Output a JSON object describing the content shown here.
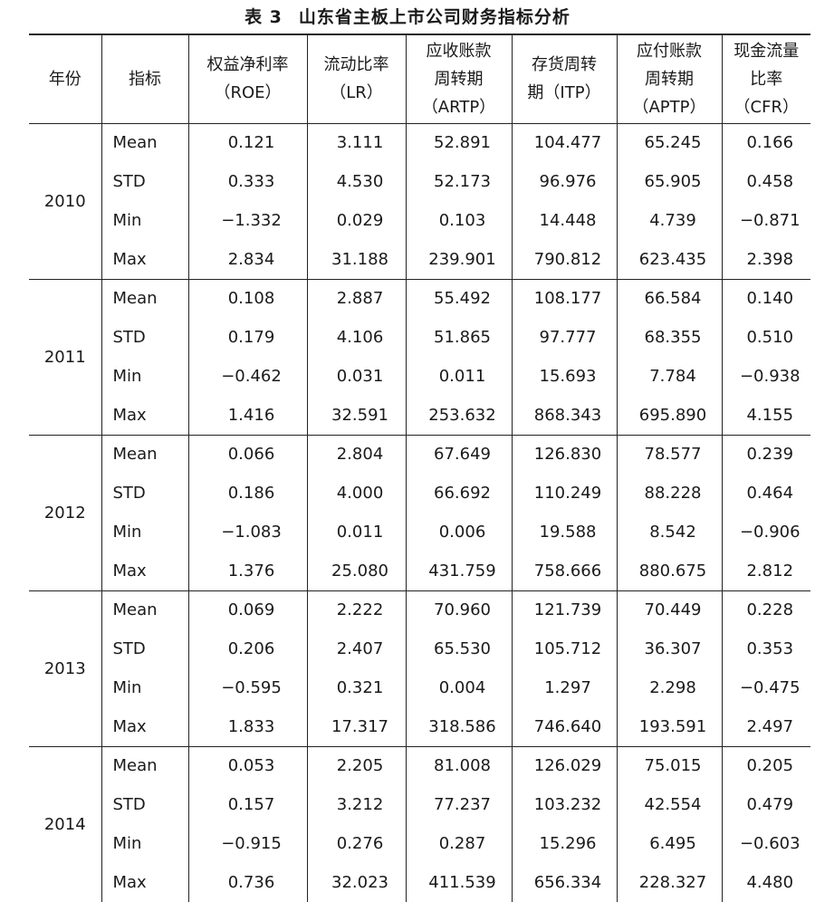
{
  "title": {
    "number": "表 3",
    "text": "山东省主板上市公司财务指标分析"
  },
  "headers": [
    [
      "年份"
    ],
    [
      "指标"
    ],
    [
      "权益净利率",
      "（ROE）"
    ],
    [
      "流动比率",
      "（LR）"
    ],
    [
      "应收账款",
      "周转期",
      "（ARTP）"
    ],
    [
      "存货周转",
      "期（ITP）"
    ],
    [
      "应付账款",
      "周转期",
      "（APTP）"
    ],
    [
      "现金流量",
      "比率（CFR）"
    ]
  ],
  "groups": [
    {
      "year": "2010",
      "rows": [
        {
          "stat": "Mean",
          "values": [
            "0.121",
            "3.111",
            "52.891",
            "104.477",
            "65.245",
            "0.166"
          ]
        },
        {
          "stat": "STD",
          "values": [
            "0.333",
            "4.530",
            "52.173",
            "96.976",
            "65.905",
            "0.458"
          ]
        },
        {
          "stat": "Min",
          "values": [
            "−1.332",
            "0.029",
            "0.103",
            "14.448",
            "4.739",
            "−0.871"
          ]
        },
        {
          "stat": "Max",
          "values": [
            "2.834",
            "31.188",
            "239.901",
            "790.812",
            "623.435",
            "2.398"
          ]
        }
      ]
    },
    {
      "year": "2011",
      "rows": [
        {
          "stat": "Mean",
          "values": [
            "0.108",
            "2.887",
            "55.492",
            "108.177",
            "66.584",
            "0.140"
          ]
        },
        {
          "stat": "STD",
          "values": [
            "0.179",
            "4.106",
            "51.865",
            "97.777",
            "68.355",
            "0.510"
          ]
        },
        {
          "stat": "Min",
          "values": [
            "−0.462",
            "0.031",
            "0.011",
            "15.693",
            "7.784",
            "−0.938"
          ]
        },
        {
          "stat": "Max",
          "values": [
            "1.416",
            "32.591",
            "253.632",
            "868.343",
            "695.890",
            "4.155"
          ]
        }
      ]
    },
    {
      "year": "2012",
      "rows": [
        {
          "stat": "Mean",
          "values": [
            "0.066",
            "2.804",
            "67.649",
            "126.830",
            "78.577",
            "0.239"
          ]
        },
        {
          "stat": "STD",
          "values": [
            "0.186",
            "4.000",
            "66.692",
            "110.249",
            "88.228",
            "0.464"
          ]
        },
        {
          "stat": "Min",
          "values": [
            "−1.083",
            "0.011",
            "0.006",
            "19.588",
            "8.542",
            "−0.906"
          ]
        },
        {
          "stat": "Max",
          "values": [
            "1.376",
            "25.080",
            "431.759",
            "758.666",
            "880.675",
            "2.812"
          ]
        }
      ]
    },
    {
      "year": "2013",
      "rows": [
        {
          "stat": "Mean",
          "values": [
            "0.069",
            "2.222",
            "70.960",
            "121.739",
            "70.449",
            "0.228"
          ]
        },
        {
          "stat": "STD",
          "values": [
            "0.206",
            "2.407",
            "65.530",
            "105.712",
            "36.307",
            "0.353"
          ]
        },
        {
          "stat": "Min",
          "values": [
            "−0.595",
            "0.321",
            "0.004",
            "1.297",
            "2.298",
            "−0.475"
          ]
        },
        {
          "stat": "Max",
          "values": [
            "1.833",
            "17.317",
            "318.586",
            "746.640",
            "193.591",
            "2.497"
          ]
        }
      ]
    },
    {
      "year": "2014",
      "rows": [
        {
          "stat": "Mean",
          "values": [
            "0.053",
            "2.205",
            "81.008",
            "126.029",
            "75.015",
            "0.205"
          ]
        },
        {
          "stat": "STD",
          "values": [
            "0.157",
            "3.212",
            "77.237",
            "103.232",
            "42.554",
            "0.479"
          ]
        },
        {
          "stat": "Min",
          "values": [
            "−0.915",
            "0.276",
            "0.287",
            "15.296",
            "6.495",
            "−0.603"
          ]
        },
        {
          "stat": "Max",
          "values": [
            "0.736",
            "32.023",
            "411.539",
            "656.334",
            "228.327",
            "4.480"
          ]
        }
      ]
    }
  ]
}
